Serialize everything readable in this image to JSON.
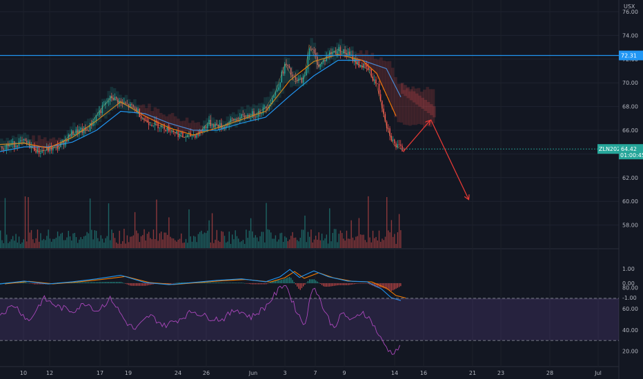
{
  "chart_data": {
    "type": "candlestick",
    "currency": "USX",
    "symbol_tag": "ZLN2021",
    "last_price": "64.42",
    "countdown": "01:00:45",
    "resistance_label": "72.31",
    "resistance_level": 72.31,
    "price_axis": {
      "ticks": [
        "76.00",
        "74.00",
        "72.00",
        "70.00",
        "68.00",
        "66.00",
        "64.00",
        "62.00",
        "60.00",
        "58.00"
      ],
      "values": [
        76,
        74,
        72,
        70,
        68,
        66,
        64,
        62,
        60,
        58
      ]
    },
    "macd_axis": {
      "ticks": [
        "1.00",
        "0.00",
        "-1.00"
      ],
      "values": [
        1,
        0,
        -1
      ]
    },
    "rsi_axis": {
      "ticks": [
        "80.00",
        "60.00",
        "40.00",
        "20.00"
      ],
      "values": [
        80,
        60,
        40,
        20
      ],
      "overbought": 70,
      "oversold": 30
    },
    "dates": [
      "10",
      "12",
      "17",
      "19",
      "24",
      "26",
      "Jun",
      "3",
      "7",
      "9",
      "14",
      "16",
      "21",
      "23",
      "28",
      "Jul"
    ],
    "close_path": [
      [
        0,
        64.6
      ],
      [
        0.05,
        65.0
      ],
      [
        0.08,
        64.2
      ],
      [
        0.12,
        64.6
      ],
      [
        0.15,
        65.8
      ],
      [
        0.18,
        66.0
      ],
      [
        0.2,
        67.3
      ],
      [
        0.23,
        68.8
      ],
      [
        0.25,
        68.3
      ],
      [
        0.28,
        67.8
      ],
      [
        0.3,
        66.8
      ],
      [
        0.33,
        66.4
      ],
      [
        0.36,
        65.9
      ],
      [
        0.38,
        65.4
      ],
      [
        0.41,
        65.7
      ],
      [
        0.43,
        66.6
      ],
      [
        0.46,
        66.3
      ],
      [
        0.48,
        66.8
      ],
      [
        0.51,
        67.2
      ],
      [
        0.53,
        67.4
      ],
      [
        0.55,
        67.9
      ],
      [
        0.57,
        69.2
      ],
      [
        0.59,
        71.6
      ],
      [
        0.61,
        70.1
      ],
      [
        0.63,
        70.4
      ],
      [
        0.64,
        73.2
      ],
      [
        0.66,
        71.4
      ],
      [
        0.68,
        72.4
      ],
      [
        0.7,
        72.8
      ],
      [
        0.72,
        72.4
      ],
      [
        0.74,
        71.6
      ],
      [
        0.76,
        71.2
      ],
      [
        0.78,
        69.8
      ],
      [
        0.8,
        66.4
      ],
      [
        0.815,
        64.8
      ],
      [
        0.83,
        64.4
      ]
    ],
    "ema_fast": [
      [
        0,
        64.8
      ],
      [
        0.05,
        64.9
      ],
      [
        0.1,
        64.5
      ],
      [
        0.15,
        65.4
      ],
      [
        0.2,
        66.8
      ],
      [
        0.25,
        68.4
      ],
      [
        0.3,
        67.2
      ],
      [
        0.35,
        66.2
      ],
      [
        0.4,
        65.6
      ],
      [
        0.45,
        66.2
      ],
      [
        0.5,
        66.9
      ],
      [
        0.55,
        67.6
      ],
      [
        0.6,
        70.2
      ],
      [
        0.65,
        71.8
      ],
      [
        0.7,
        72.4
      ],
      [
        0.75,
        71.9
      ],
      [
        0.78,
        70.8
      ],
      [
        0.82,
        67.2
      ]
    ],
    "ema_slow": [
      [
        0,
        64.2
      ],
      [
        0.05,
        64.6
      ],
      [
        0.1,
        64.6
      ],
      [
        0.15,
        65.0
      ],
      [
        0.2,
        66.0
      ],
      [
        0.25,
        67.6
      ],
      [
        0.3,
        67.4
      ],
      [
        0.35,
        66.6
      ],
      [
        0.4,
        66.0
      ],
      [
        0.45,
        66.0
      ],
      [
        0.5,
        66.6
      ],
      [
        0.55,
        67.1
      ],
      [
        0.6,
        68.9
      ],
      [
        0.65,
        70.6
      ],
      [
        0.7,
        71.9
      ],
      [
        0.75,
        71.9
      ],
      [
        0.8,
        71.2
      ],
      [
        0.83,
        68.8
      ]
    ],
    "forecast_arrows": [
      {
        "from": [
          0.835,
          64.2
        ],
        "to": [
          0.89,
          66.8
        ]
      },
      {
        "from": [
          0.892,
          66.9
        ],
        "to": [
          0.97,
          60.2
        ]
      }
    ],
    "macd_path": [
      [
        0,
        -0.05
      ],
      [
        0.05,
        0.15
      ],
      [
        0.1,
        -0.05
      ],
      [
        0.15,
        0.1
      ],
      [
        0.2,
        0.3
      ],
      [
        0.25,
        0.55
      ],
      [
        0.3,
        0.05
      ],
      [
        0.35,
        -0.1
      ],
      [
        0.4,
        0.05
      ],
      [
        0.45,
        0.2
      ],
      [
        0.5,
        0.3
      ],
      [
        0.55,
        0.1
      ],
      [
        0.58,
        0.45
      ],
      [
        0.6,
        0.95
      ],
      [
        0.62,
        0.4
      ],
      [
        0.65,
        0.85
      ],
      [
        0.68,
        0.45
      ],
      [
        0.72,
        0.15
      ],
      [
        0.76,
        0.1
      ],
      [
        0.79,
        -0.4
      ],
      [
        0.81,
        -1.0
      ],
      [
        0.83,
        -1.2
      ]
    ],
    "rsi_path": [
      [
        0,
        55
      ],
      [
        0.03,
        64
      ],
      [
        0.06,
        48
      ],
      [
        0.09,
        70
      ],
      [
        0.12,
        62
      ],
      [
        0.15,
        58
      ],
      [
        0.18,
        66
      ],
      [
        0.2,
        58
      ],
      [
        0.23,
        70
      ],
      [
        0.26,
        48
      ],
      [
        0.28,
        40
      ],
      [
        0.31,
        54
      ],
      [
        0.34,
        44
      ],
      [
        0.37,
        50
      ],
      [
        0.4,
        58
      ],
      [
        0.43,
        52
      ],
      [
        0.46,
        50
      ],
      [
        0.49,
        60
      ],
      [
        0.52,
        52
      ],
      [
        0.55,
        62
      ],
      [
        0.57,
        74
      ],
      [
        0.59,
        85
      ],
      [
        0.61,
        62
      ],
      [
        0.63,
        44
      ],
      [
        0.65,
        84
      ],
      [
        0.67,
        60
      ],
      [
        0.69,
        42
      ],
      [
        0.71,
        56
      ],
      [
        0.73,
        48
      ],
      [
        0.75,
        58
      ],
      [
        0.77,
        48
      ],
      [
        0.79,
        30
      ],
      [
        0.81,
        18
      ],
      [
        0.83,
        24
      ]
    ]
  }
}
